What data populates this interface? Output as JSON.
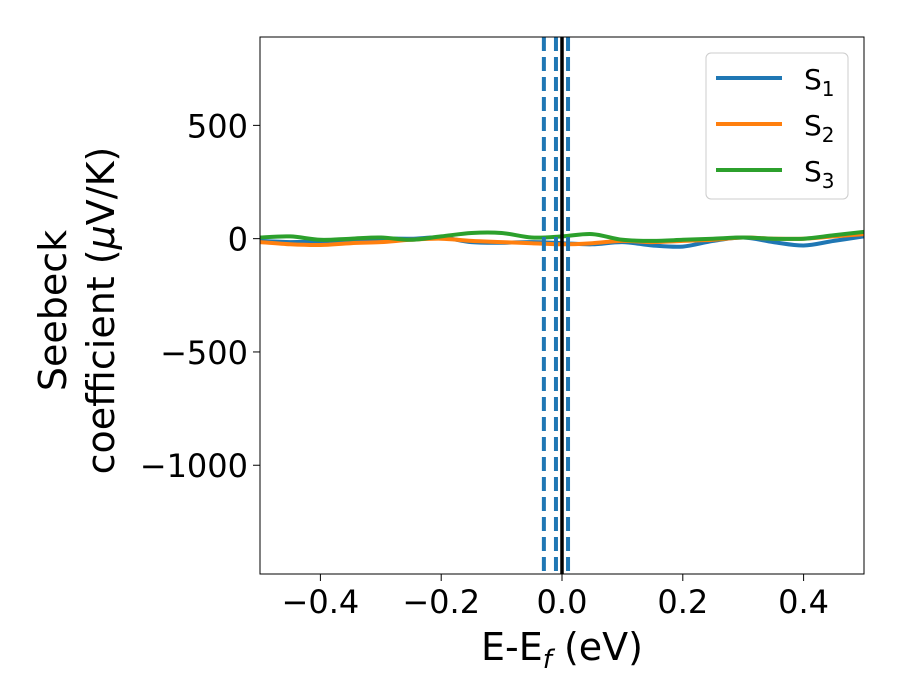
{
  "chart_data": {
    "type": "line",
    "title": "",
    "xlabel": {
      "base": "E-E",
      "sub": "f",
      "tail": " (eV)"
    },
    "ylabel": {
      "line1": "Seebeck",
      "line2_text": "coefficient  (",
      "line2_mu": "μ",
      "line2_tail": "V/K)"
    },
    "xlim": [
      -0.5,
      0.5
    ],
    "ylim": [
      -1480,
      890
    ],
    "xticks": [
      -0.4,
      -0.2,
      0.0,
      0.2,
      0.4
    ],
    "xtick_labels": [
      "−0.4",
      "−0.2",
      "0.0",
      "0.2",
      "0.4"
    ],
    "yticks": [
      500,
      0,
      -500,
      -1000
    ],
    "ytick_labels": [
      "500",
      "0",
      "−500",
      "−1000"
    ],
    "grid": false,
    "legend_position": "top-right",
    "vlines": [
      {
        "x": -0.03,
        "style": "dashed",
        "color": "#1f77b4"
      },
      {
        "x": -0.01,
        "style": "dashed",
        "color": "#1f77b4"
      },
      {
        "x": 0.01,
        "style": "dashed",
        "color": "#1f77b4"
      },
      {
        "x": 0.0,
        "style": "solid",
        "color": "#000000"
      }
    ],
    "series": [
      {
        "name": "S",
        "sub": "1",
        "color": "#1f77b4",
        "x": [
          -0.5,
          -0.45,
          -0.4,
          -0.35,
          -0.3,
          -0.25,
          -0.2,
          -0.15,
          -0.1,
          -0.05,
          0.0,
          0.05,
          0.1,
          0.15,
          0.2,
          0.25,
          0.3,
          0.35,
          0.4,
          0.45,
          0.5
        ],
        "y": [
          -10,
          -15,
          -12,
          -5,
          0,
          0,
          5,
          -15,
          -18,
          -15,
          -20,
          -25,
          -15,
          -30,
          -35,
          -10,
          5,
          -15,
          -30,
          -10,
          10
        ]
      },
      {
        "name": "S",
        "sub": "2",
        "color": "#ff7f0e",
        "x": [
          -0.5,
          -0.45,
          -0.4,
          -0.35,
          -0.3,
          -0.25,
          -0.2,
          -0.15,
          -0.1,
          -0.05,
          0.0,
          0.05,
          0.1,
          0.15,
          0.2,
          0.25,
          0.3,
          0.35,
          0.4,
          0.45,
          0.5
        ],
        "y": [
          -15,
          -25,
          -28,
          -20,
          -15,
          -5,
          0,
          -10,
          -15,
          -20,
          -25,
          -20,
          -10,
          -15,
          -10,
          -5,
          5,
          0,
          0,
          10,
          20
        ]
      },
      {
        "name": "S",
        "sub": "3",
        "color": "#2ca02c",
        "x": [
          -0.5,
          -0.45,
          -0.4,
          -0.35,
          -0.3,
          -0.25,
          -0.2,
          -0.15,
          -0.1,
          -0.05,
          0.0,
          0.05,
          0.1,
          0.15,
          0.2,
          0.25,
          0.3,
          0.35,
          0.4,
          0.45,
          0.5
        ],
        "y": [
          5,
          10,
          -5,
          0,
          5,
          -5,
          10,
          25,
          25,
          5,
          10,
          20,
          -5,
          -10,
          -5,
          0,
          5,
          0,
          0,
          15,
          30
        ]
      }
    ]
  }
}
